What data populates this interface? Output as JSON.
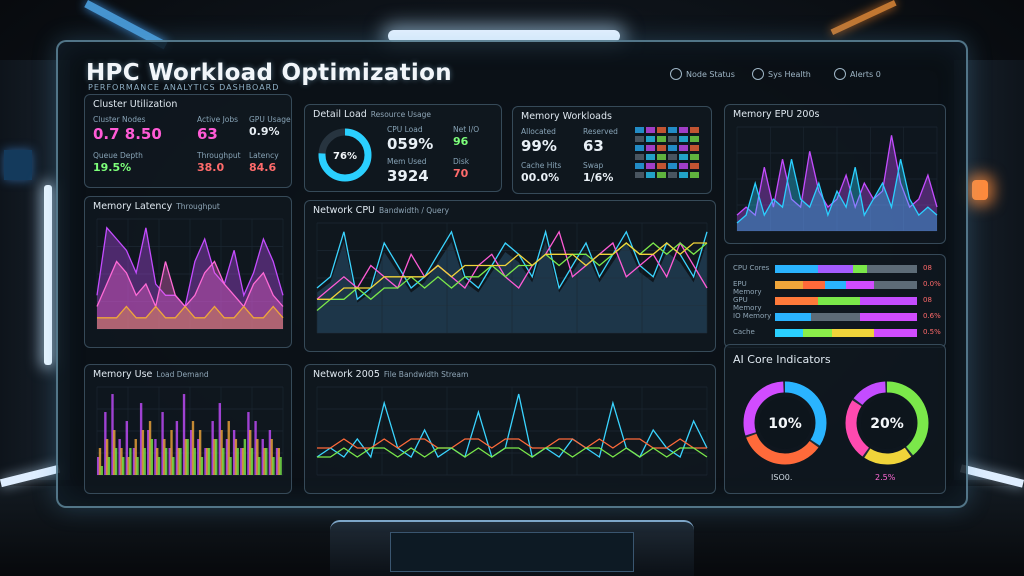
{
  "app": {
    "title": "HPC Workload Optimization",
    "subtitle": "PERFORMANCE ANALYTICS DASHBOARD"
  },
  "header_status": [
    {
      "label": "Node Status",
      "icon": "signal-icon"
    },
    {
      "label": "Sys Health",
      "icon": "gear-icon"
    },
    {
      "label": "Alerts 0",
      "icon": "bell-icon"
    }
  ],
  "compute_card": {
    "title": "Cluster Utilization",
    "stats": [
      {
        "label": "Cluster Nodes",
        "value": "0.7 8.50",
        "color": "#ff5bd6"
      },
      {
        "label": "Active Jobs",
        "value": "63",
        "color": "#ff5bd6"
      },
      {
        "label": "GPU Usage",
        "value": "0.9%",
        "color": "#e7eef4"
      },
      {
        "label": "Queue Depth",
        "value": "19.5%",
        "color": "#7dff7a"
      },
      {
        "label": "Throughput",
        "value": "38.0",
        "color": "#ff6b6b"
      },
      {
        "label": "Latency",
        "value": "84.6",
        "color": "#ff6b6b"
      }
    ]
  },
  "detail_card": {
    "title": "Detail Load",
    "title_sub": "Resource Usage",
    "gauge_value": "76%",
    "gauge_fraction": 0.76,
    "stats": [
      {
        "label": "CPU Load",
        "value": "059%",
        "color": "#e9f0f6"
      },
      {
        "label": "Mem Used",
        "value": "3924",
        "color": "#e9f0f6"
      },
      {
        "label": "Net I/O",
        "value": "96",
        "color": "#e9f0f6"
      },
      {
        "label": "Disk",
        "value": "70",
        "color": "#e9f0f6"
      }
    ]
  },
  "memory_card": {
    "title": "Memory Workloads",
    "stats": [
      {
        "label": "Allocated",
        "value": "99%",
        "color": "#e9f0f6"
      },
      {
        "label": "Reserved",
        "value": "63",
        "color": "#e9f0f6"
      },
      {
        "label": "Cache Hits",
        "value": "00.0%",
        "color": "#e9f0f6"
      },
      {
        "label": "Swap",
        "value": "1/6%",
        "color": "#e9f0f6"
      }
    ]
  },
  "memory_epu_card": {
    "title": "Memory EPU 200s"
  },
  "throughput_card": {
    "title": "Memory Latency",
    "title_sub": "Throughput"
  },
  "main_chart_card": {
    "title": "Network CPU",
    "title_sub": "Bandwidth / Query"
  },
  "memory_use_card": {
    "title": "Memory Use",
    "title_sub": "Load Demand"
  },
  "bottom_chart_card": {
    "title": "Network 2005",
    "title_sub": "File Bandwidth Stream"
  },
  "bars_card": {
    "rows": [
      {
        "label": "CPU Cores",
        "value": "08",
        "segments": [
          {
            "color": "#2ab4ff",
            "f": 0.3
          },
          {
            "color": "#a45cff",
            "f": 0.25
          },
          {
            "color": "#7be84a",
            "f": 0.1
          },
          {
            "color": "#5d6b77",
            "f": 0.35
          }
        ]
      },
      {
        "label": "EPU Memory",
        "value": "0.0%",
        "segments": [
          {
            "color": "#f0a63a",
            "f": 0.2
          },
          {
            "color": "#ff6a3a",
            "f": 0.15
          },
          {
            "color": "#2ab4ff",
            "f": 0.15
          },
          {
            "color": "#d14cff",
            "f": 0.2
          },
          {
            "color": "#5d6b77",
            "f": 0.3
          }
        ]
      },
      {
        "label": "GPU Memory",
        "value": "08",
        "segments": [
          {
            "color": "#ff7a3a",
            "f": 0.3
          },
          {
            "color": "#7be84a",
            "f": 0.3
          },
          {
            "color": "#c44cff",
            "f": 0.4
          }
        ]
      },
      {
        "label": "IO Memory",
        "value": "0.6%",
        "segments": [
          {
            "color": "#2ab4ff",
            "f": 0.25
          },
          {
            "color": "#5d6b77",
            "f": 0.35
          },
          {
            "color": "#d14cff",
            "f": 0.4
          }
        ]
      },
      {
        "label": "Cache",
        "value": "0.5%",
        "segments": [
          {
            "color": "#2ad0ff",
            "f": 0.2
          },
          {
            "color": "#8aee4a",
            "f": 0.2
          },
          {
            "color": "#f0d43a",
            "f": 0.3
          },
          {
            "color": "#d14cff",
            "f": 0.3
          }
        ]
      }
    ]
  },
  "gauges_card": {
    "title": "AI Core Indicators",
    "gauges": [
      {
        "value": "10%",
        "footer": "ISO0.",
        "segments": [
          {
            "color": "#2ab4ff",
            "f": 0.35
          },
          {
            "color": "#ff6a3a",
            "f": 0.35
          },
          {
            "color": "#d14cff",
            "f": 0.3
          }
        ]
      },
      {
        "value": "20%",
        "footer": "2.5%",
        "segments": [
          {
            "color": "#7be84a",
            "f": 0.4
          },
          {
            "color": "#f0d43a",
            "f": 0.2
          },
          {
            "color": "#ff4ab0",
            "f": 0.25
          },
          {
            "color": "#c44cff",
            "f": 0.15
          }
        ]
      }
    ]
  },
  "chart_data": [
    {
      "type": "area",
      "id": "memory-epu",
      "series": [
        {
          "color": "#c44cff",
          "values": [
            2,
            3,
            2,
            8,
            3,
            9,
            4,
            3,
            10,
            5,
            3,
            4,
            7,
            3,
            6,
            4,
            5,
            12,
            6,
            3,
            4,
            7,
            3
          ]
        },
        {
          "color": "#2ad0ff",
          "values": [
            1,
            2,
            6,
            2,
            4,
            3,
            9,
            4,
            3,
            6,
            2,
            5,
            3,
            8,
            2,
            4,
            6,
            3,
            9,
            4,
            2,
            3,
            2
          ]
        }
      ]
    },
    {
      "type": "area",
      "id": "throughput",
      "series": [
        {
          "color": "#c44cff",
          "values": [
            3,
            9,
            8,
            7,
            5,
            9,
            4,
            3,
            3,
            2,
            6,
            8,
            5,
            4,
            7,
            3,
            5,
            8,
            6,
            3
          ]
        },
        {
          "color": "#ff6ad6",
          "values": [
            2,
            4,
            6,
            5,
            3,
            4,
            2,
            6,
            3,
            2,
            3,
            5,
            6,
            4,
            3,
            2,
            4,
            5,
            3,
            2
          ]
        },
        {
          "color": "#f0a63a",
          "values": [
            1,
            1,
            1,
            2,
            1,
            1,
            2,
            1,
            1,
            2,
            1,
            1,
            2,
            1,
            1,
            2,
            1,
            1,
            2,
            1
          ]
        }
      ]
    },
    {
      "type": "line",
      "id": "network-cpu",
      "series": [
        {
          "color": "#3ad4ff",
          "values": [
            4,
            5,
            9,
            3,
            4,
            8,
            6,
            4,
            5,
            7,
            9,
            5,
            4,
            6,
            8,
            7,
            5,
            9,
            4,
            6,
            8,
            5,
            7,
            9,
            6,
            5,
            8,
            7,
            5,
            9
          ]
        },
        {
          "color": "#ff5bd6",
          "values": [
            3,
            4,
            5,
            4,
            6,
            5,
            4,
            7,
            5,
            6,
            5,
            4,
            6,
            7,
            5,
            4,
            6,
            7,
            9,
            5,
            6,
            7,
            8,
            5,
            6,
            7,
            5,
            8,
            6,
            4
          ]
        },
        {
          "color": "#7be84a",
          "values": [
            2,
            3,
            3,
            4,
            3,
            4,
            4,
            5,
            4,
            5,
            4,
            5,
            5,
            6,
            5,
            6,
            6,
            7,
            6,
            7,
            7,
            6,
            7,
            8,
            7,
            8,
            7,
            8,
            7,
            8
          ]
        },
        {
          "color": "#f0d43a",
          "values": [
            3,
            3,
            4,
            4,
            4,
            5,
            5,
            5,
            5,
            6,
            5,
            6,
            6,
            6,
            6,
            7,
            6,
            7,
            7,
            7,
            6,
            7,
            7,
            8,
            7,
            7,
            8,
            7,
            8,
            8
          ]
        }
      ]
    },
    {
      "type": "bar",
      "id": "memory-use",
      "series": [
        {
          "color": "#c44cff",
          "values": [
            2,
            7,
            9,
            4,
            6,
            3,
            8,
            5,
            4,
            7,
            3,
            6,
            9,
            5,
            4,
            3,
            6,
            8,
            4,
            5,
            3,
            7,
            6,
            4,
            5,
            3
          ]
        },
        {
          "color": "#f0a63a",
          "values": [
            3,
            4,
            5,
            3,
            2,
            4,
            5,
            6,
            3,
            4,
            5,
            3,
            4,
            6,
            5,
            3,
            4,
            5,
            6,
            4,
            3,
            5,
            4,
            3,
            4,
            3
          ]
        },
        {
          "color": "#7be84a",
          "values": [
            1,
            2,
            3,
            2,
            3,
            2,
            3,
            4,
            2,
            3,
            2,
            3,
            4,
            3,
            2,
            3,
            4,
            3,
            2,
            3,
            4,
            3,
            2,
            3,
            2,
            2
          ]
        }
      ]
    },
    {
      "type": "line",
      "id": "network-2005",
      "series": [
        {
          "color": "#3ad4ff",
          "values": [
            2,
            3,
            2,
            4,
            2,
            8,
            3,
            2,
            5,
            2,
            3,
            2,
            7,
            2,
            3,
            9,
            2,
            3,
            2,
            4,
            3,
            2,
            8,
            3,
            2,
            5,
            3,
            2,
            6,
            3
          ]
        },
        {
          "color": "#ff6a3a",
          "values": [
            3,
            3,
            4,
            3,
            3,
            4,
            3,
            4,
            4,
            3,
            3,
            4,
            4,
            3,
            4,
            4,
            3,
            3,
            4,
            4,
            3,
            4,
            3,
            4,
            4,
            3,
            3,
            4,
            3,
            3
          ]
        },
        {
          "color": "#7be84a",
          "values": [
            2,
            2,
            3,
            2,
            3,
            3,
            2,
            3,
            2,
            3,
            3,
            2,
            3,
            2,
            3,
            3,
            2,
            3,
            3,
            2,
            3,
            3,
            2,
            3,
            2,
            3,
            2,
            3,
            3,
            2
          ]
        }
      ]
    }
  ]
}
